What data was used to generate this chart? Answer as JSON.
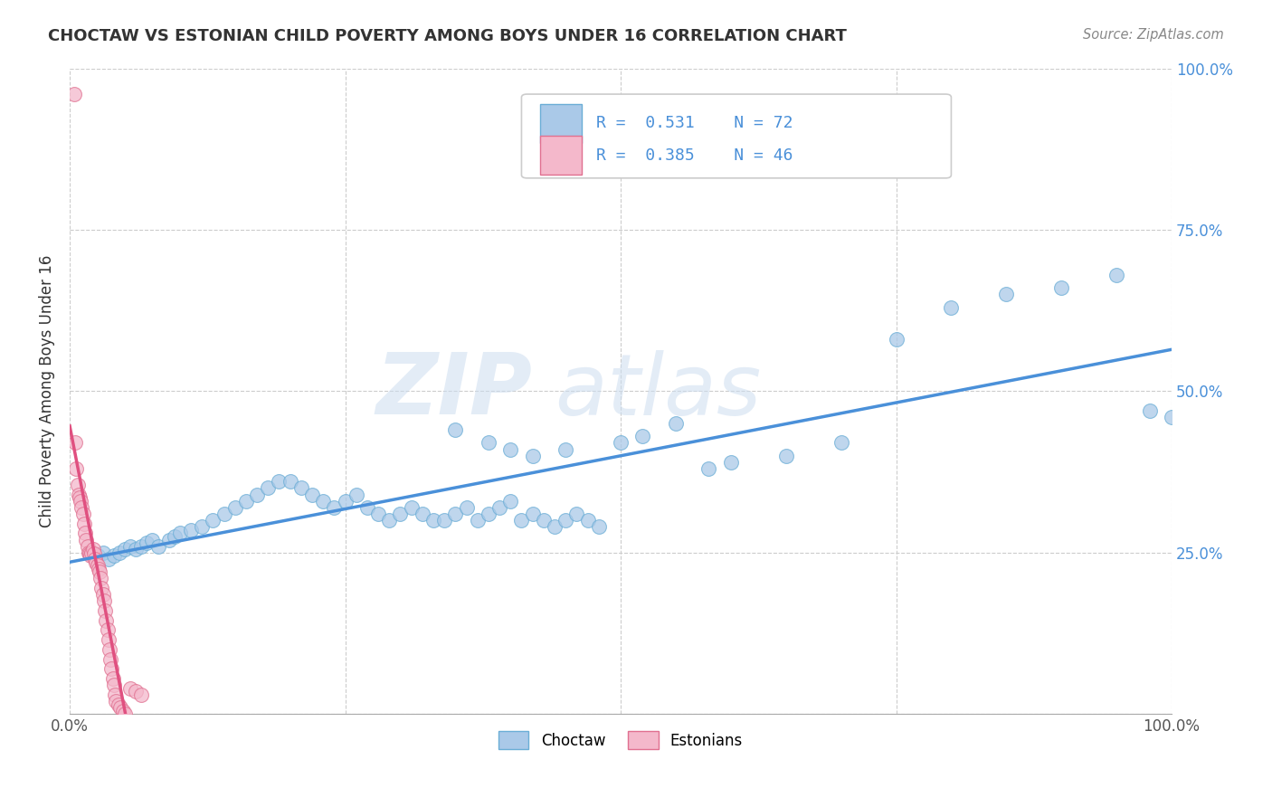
{
  "title": "CHOCTAW VS ESTONIAN CHILD POVERTY AMONG BOYS UNDER 16 CORRELATION CHART",
  "source": "Source: ZipAtlas.com",
  "ylabel": "Child Poverty Among Boys Under 16",
  "watermark_zip": "ZIP",
  "watermark_atlas": "atlas",
  "choctaw_color": "#aac9e8",
  "choctaw_edge_color": "#6baed6",
  "estonian_color": "#f4b8cb",
  "estonian_edge_color": "#e07090",
  "choctaw_R": 0.531,
  "choctaw_N": 72,
  "estonian_R": 0.385,
  "estonian_N": 46,
  "choctaw_line_color": "#4a90d9",
  "estonian_line_color": "#e05080",
  "estonian_line_dashed_color": "#bbbbbb",
  "legend_label_choctaw": "Choctaw",
  "legend_label_estonian": "Estonians",
  "tick_color": "#4a90d9",
  "grid_color": "#cccccc",
  "title_color": "#333333",
  "source_color": "#888888"
}
